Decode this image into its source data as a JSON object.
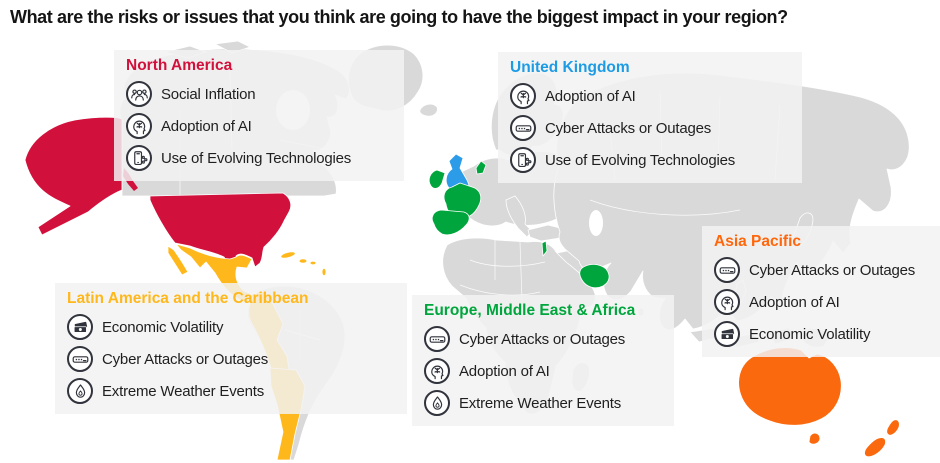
{
  "title": "What are the risks or issues that you think are going to have the biggest impact in your region?",
  "regions": [
    {
      "id": "north-america",
      "name": "North America",
      "color": "#D2103C",
      "risks": [
        {
          "icon": "social-inflation-icon",
          "label": "Social Inflation"
        },
        {
          "icon": "adoption-of-ai-icon",
          "label": "Adoption of AI"
        },
        {
          "icon": "evolving-technologies-icon",
          "label": "Use of Evolving Technologies"
        }
      ]
    },
    {
      "id": "united-kingdom",
      "name": "United Kingdom",
      "color": "#1D9BE4",
      "risks": [
        {
          "icon": "adoption-of-ai-icon",
          "label": "Adoption of AI"
        },
        {
          "icon": "cyber-attacks-icon",
          "label": "Cyber Attacks or Outages"
        },
        {
          "icon": "evolving-technologies-icon",
          "label": "Use of Evolving Technologies"
        }
      ]
    },
    {
      "id": "latin-america-caribbean",
      "name": "Latin America and the Caribbean",
      "color": "#FFB81C",
      "risks": [
        {
          "icon": "economic-volatility-icon",
          "label": "Economic Volatility"
        },
        {
          "icon": "cyber-attacks-icon",
          "label": "Cyber Attacks or Outages"
        },
        {
          "icon": "extreme-weather-icon",
          "label": "Extreme Weather Events"
        }
      ]
    },
    {
      "id": "europe-middle-east-africa",
      "name": "Europe, Middle East & Africa",
      "color": "#00A63D",
      "risks": [
        {
          "icon": "cyber-attacks-icon",
          "label": "Cyber Attacks or Outages"
        },
        {
          "icon": "adoption-of-ai-icon",
          "label": "Adoption of AI"
        },
        {
          "icon": "extreme-weather-icon",
          "label": "Extreme Weather Events"
        }
      ]
    },
    {
      "id": "asia-pacific",
      "name": "Asia Pacific",
      "color": "#FF670D",
      "risks": [
        {
          "icon": "cyber-attacks-icon",
          "label": "Cyber Attacks or Outages"
        },
        {
          "icon": "adoption-of-ai-icon",
          "label": "Adoption of AI"
        },
        {
          "icon": "economic-volatility-icon",
          "label": "Economic Volatility"
        }
      ]
    }
  ],
  "map": {
    "colors": {
      "land": "#D9D9D9",
      "ocean": "#FFFFFF",
      "north_america": "#D2103C",
      "latin_america": "#FFB81C",
      "united_kingdom": "#2D9CE8",
      "emea": "#00A63D",
      "asia_pacific": "#FB690F"
    }
  }
}
